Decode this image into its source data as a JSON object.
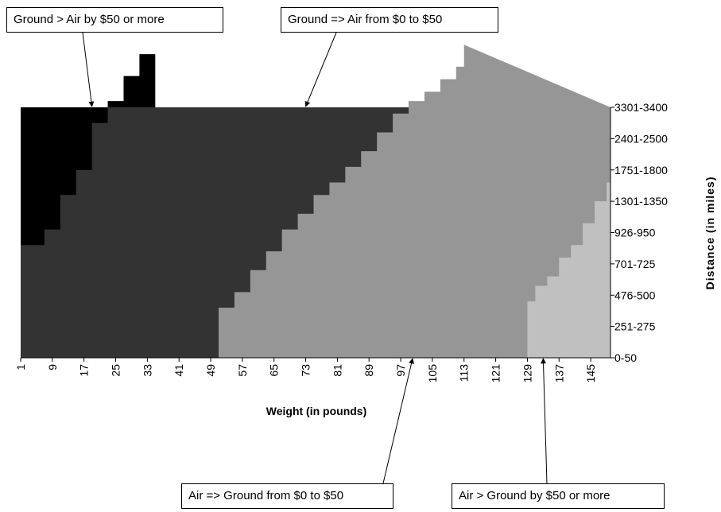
{
  "chart_data": {
    "type": "heatmap",
    "title": "",
    "xlabel": "Weight (in pounds)",
    "ylabel": "Distance (in miles)",
    "x_range": [
      1,
      150
    ],
    "x_ticks": [
      "1",
      "9",
      "17",
      "25",
      "33",
      "41",
      "49",
      "57",
      "65",
      "73",
      "81",
      "89",
      "97",
      "105",
      "113",
      "121",
      "129",
      "137",
      "145"
    ],
    "y_ticks": [
      "0-50",
      "251-275",
      "476-500",
      "701-725",
      "926-950",
      "1301-1350",
      "1751-1800",
      "2401-2500",
      "3301-3400"
    ],
    "legend": [
      {
        "label": "Ground > Air by $50 or more",
        "color": "#000000"
      },
      {
        "label": "Ground => Air from $0 to $50",
        "color": "#333333"
      },
      {
        "label": "Air => Ground from $0 to $50",
        "color": "#969696"
      },
      {
        "label": "Air > Ground by $50 or more",
        "color": "#c0c0c0"
      }
    ],
    "boundaries": [
      {
        "between": [
          "Ground > Air by $50 or more",
          "Ground => Air from $0 to $50"
        ],
        "points": [
          [
            4,
            3.6
          ],
          [
            7,
            4.1
          ],
          [
            11,
            5.2
          ],
          [
            15,
            6.0
          ],
          [
            19,
            7.5
          ],
          [
            23,
            8.2
          ],
          [
            27,
            9.0
          ],
          [
            31,
            9.7
          ],
          [
            35,
            10.0
          ]
        ]
      },
      {
        "between": [
          "Ground => Air from $0 to $50",
          "Air => Ground from $0 to $50"
        ],
        "points": [
          [
            49,
            0
          ],
          [
            51,
            1.6
          ],
          [
            55,
            2.1
          ],
          [
            59,
            2.8
          ],
          [
            63,
            3.4
          ],
          [
            67,
            4.1
          ],
          [
            71,
            4.6
          ],
          [
            75,
            5.2
          ],
          [
            79,
            5.6
          ],
          [
            83,
            6.1
          ],
          [
            87,
            6.6
          ],
          [
            91,
            7.2
          ],
          [
            95,
            7.8
          ],
          [
            99,
            8.2
          ],
          [
            103,
            8.5
          ],
          [
            107,
            8.9
          ],
          [
            111,
            9.3
          ],
          [
            113,
            10.0
          ]
        ]
      },
      {
        "between": [
          "Air => Ground from $0 to $50",
          "Air > Ground by $50 or more"
        ],
        "points": [
          [
            127,
            0
          ],
          [
            129,
            1.8
          ],
          [
            131,
            2.3
          ],
          [
            134,
            2.6
          ],
          [
            137,
            3.2
          ],
          [
            140,
            3.6
          ],
          [
            143,
            4.3
          ],
          [
            146,
            5.0
          ],
          [
            149,
            5.6
          ],
          [
            150,
            6.0
          ]
        ]
      }
    ],
    "annotations": [
      {
        "text": "Ground > Air by $50 or more",
        "points_to": [
          19,
          10.0
        ]
      },
      {
        "text": "Ground => Air from $0 to $50",
        "points_to": [
          73,
          10.0
        ]
      },
      {
        "text": "Air => Ground from $0 to $50",
        "points_to": [
          100,
          0
        ]
      },
      {
        "text": "Air > Ground by $50 or more",
        "points_to": [
          133,
          0
        ]
      }
    ]
  }
}
